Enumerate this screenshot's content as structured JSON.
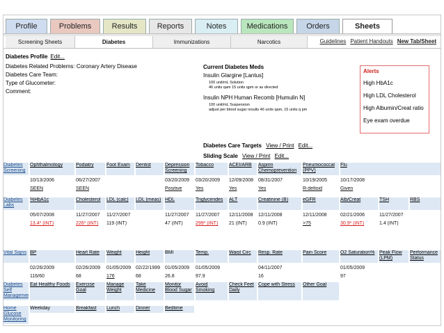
{
  "main_tabs": [
    {
      "label": "Profile",
      "color": "#cfdcef"
    },
    {
      "label": "Problems",
      "color": "#e9c8bf"
    },
    {
      "label": "Results",
      "color": "#e4e6c6"
    },
    {
      "label": "Reports",
      "color": "#e7e7e7"
    },
    {
      "label": "Notes",
      "color": "#d9eef3"
    },
    {
      "label": "Medications",
      "color": "#b9e6bd"
    },
    {
      "label": "Orders",
      "color": "#c6d6e8"
    },
    {
      "label": "Sheets",
      "color": "#ffffff",
      "active": true
    }
  ],
  "sub_tabs": [
    {
      "label": "Screening Sheets"
    },
    {
      "label": "Diabetes",
      "active": true
    },
    {
      "label": "Immunizations"
    },
    {
      "label": "Narcotics"
    }
  ],
  "sub_links": [
    "Guidelines",
    "Patient Handouts",
    "New Tab/Sheet"
  ],
  "profile": {
    "title": "Diabetes Profile",
    "edit": "Edit...",
    "lines": [
      "Diabetes Related Problems: Coronary Artery Disease",
      "Diabetes Care Team:",
      "Type of Glucometer:",
      "Comment:"
    ],
    "meds_title": "Current Diabetes Meds",
    "meds": [
      {
        "name": "Insulin Glargine [Lantus]",
        "sig": [
          "100 unit/mL Solution",
          "46 units qam 15 units qpm or as directed"
        ]
      },
      {
        "name": "Insulin NPH Human Recomb [Humulin N]",
        "sig": [
          "100 unit/mL Suspension",
          "adjust per blood sugar results 46 units qam, 15 units q pm"
        ]
      }
    ],
    "targets_label": "Diabetes Care Targets",
    "targets_links": [
      "View / Print",
      "Edit..."
    ],
    "sliding_label": "Sliding Scale",
    "sliding_links": [
      "View / Print",
      "Edit..."
    ],
    "alerts_title": "Alerts",
    "alerts": [
      "High HbA1c",
      "High LDL Cholesterol",
      "High Albumin/Creat ratio",
      "Eye exam overdue"
    ]
  },
  "grid": {
    "screening": {
      "label": "Diabetes Screening",
      "headers": [
        "Ophthalmology",
        "Podiatry",
        "Foot Exam",
        "Dentist",
        "Depression Screening",
        "Tobacco",
        "ACEI/ARB",
        "Aspirin Chemoprevention",
        "Pneumococcal (PPV)",
        "Flu"
      ],
      "dates": [
        "10/13/2006",
        "06/27/2007",
        "",
        "",
        "03/20/2009",
        "03/20/2009",
        "12/09/2008",
        "08/31/2007",
        "10/19/2005",
        "10/17/2008"
      ],
      "values": [
        "SEEN",
        "SEEN",
        "",
        "",
        "Positive",
        "Yes",
        "Yes",
        "Yes",
        "R-deltoid",
        "Given"
      ]
    },
    "labs": {
      "label": "Diabetes Labs",
      "headers": [
        "%HbA1c",
        "Cholesterol",
        "LDL (calc)",
        "LDL (meas)",
        "HDL",
        "Triglycerides",
        "ALT",
        "Creatinine (B)",
        "eGFR",
        "Alb/Creat",
        "TSH",
        "RBS"
      ],
      "dates": [
        "05/07/2008",
        "11/27/2007",
        "11/27/2007",
        "",
        "11/27/2007",
        "11/27/2007",
        "12/11/2008",
        "12/11/2008",
        "12/11/2008",
        "02/21/2006",
        "11/27/2007",
        ""
      ],
      "values": [
        "13.4* (INT)",
        "226* (INT)",
        "119 (INT)",
        "",
        "47 (INT)",
        "299* (INT)",
        "21 (INT)",
        "0.9 (INT)",
        ">75",
        "30.9* (INT)",
        "1.4 (INT)",
        ""
      ]
    },
    "vitals": {
      "label": "Vital Signs",
      "headers": [
        "BP",
        "Heart Rate",
        "Weight",
        "Height",
        "BMI",
        "Temp.",
        "Waist Circ",
        "Resp. Rate",
        "Pain Score",
        "O2 Saturation%",
        "Peak Flow (LPM)",
        "Performance Status"
      ],
      "dates": [
        "02/26/2009",
        "02/26/2009",
        "01/05/2009",
        "02/22/1999",
        "01/05/2009",
        "01/05/2009",
        "",
        "04/11/2007",
        "",
        "01/05/2009",
        "",
        ""
      ],
      "values": [
        "116/60",
        "68",
        "176",
        "68",
        "26.8",
        "97.9",
        "",
        "16",
        "",
        "97",
        "",
        ""
      ]
    },
    "self_mgmt": {
      "label": "Diabetes Self Management",
      "headers": [
        "Eat Healthy Foods",
        "Exercise Goal",
        "Manage Weight",
        "Take Medicine",
        "Monitor Blood Sugar",
        "Avoid Smoking",
        "Check Feet Daily",
        "Cope with Stress",
        "Other Goal"
      ]
    },
    "glucose": {
      "label": "Home Glucose Monitoring",
      "headers": [
        "Weekday",
        "Breakfast",
        "Lunch",
        "Dinner",
        "Bedtime"
      ]
    }
  }
}
